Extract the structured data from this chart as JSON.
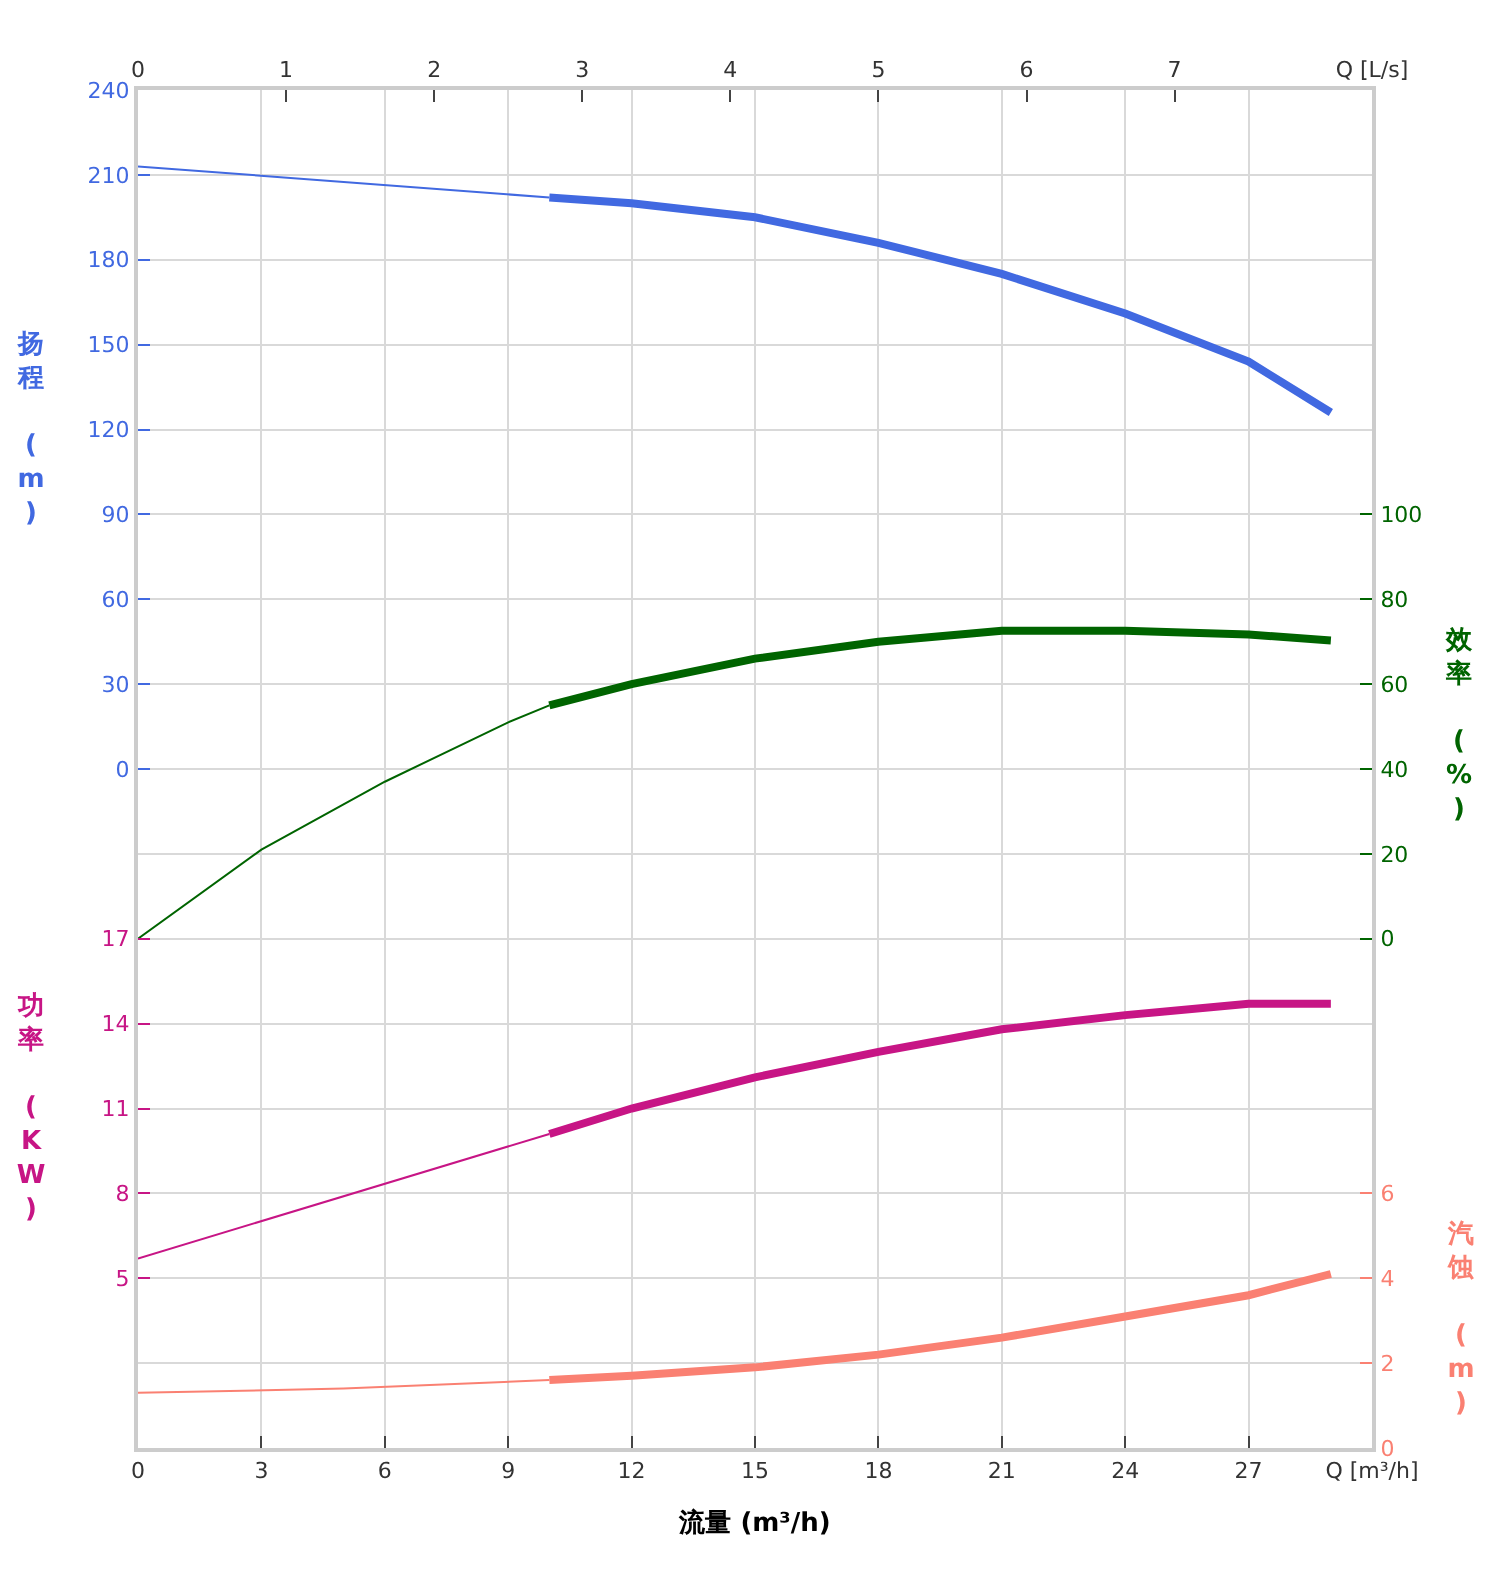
{
  "chart_data": [
    {
      "type": "line",
      "xlabel": "流量 (m³/h)",
      "ylabel": "扬程 (m)",
      "y2label": "效率 (%)",
      "xlim": [
        0,
        30
      ],
      "xticks": [
        0,
        3,
        6,
        9,
        12,
        15,
        18,
        21,
        24,
        27,
        {
          "value": 30,
          "label": "Q [m³/h]"
        }
      ],
      "x2lim": [
        0,
        8.333
      ],
      "x2ticks": [
        0,
        1,
        2,
        3,
        4,
        5,
        6,
        7,
        {
          "value": 8.333,
          "label": "Q [L/s]"
        }
      ],
      "ylim": [
        -240,
        240
      ],
      "yticks": [
        0,
        30,
        60,
        90,
        120,
        150,
        180,
        210,
        240
      ],
      "y2lim": [
        -120,
        200
      ],
      "y2ticks": [
        0,
        20,
        40,
        60,
        80,
        100
      ],
      "grid": true,
      "marker": "none",
      "line_style": "solid",
      "series": [
        {
          "color": "#4169e1",
          "x": [
            0,
            5,
            10
          ],
          "values": [
            213,
            207.5,
            202
          ]
        },
        {
          "color": "#4169e1",
          "x": [
            10,
            12,
            15,
            18,
            21,
            24,
            27,
            29
          ],
          "values": [
            202,
            200,
            195,
            186,
            175,
            161,
            144,
            126
          ]
        },
        {
          "color": "#006400",
          "axis": "y2",
          "x": [
            0,
            3,
            6,
            9,
            10
          ],
          "values": [
            0,
            21,
            37,
            51,
            55
          ]
        },
        {
          "color": "#006400",
          "axis": "y2",
          "x": [
            10,
            12,
            15,
            18,
            21,
            24,
            27,
            29
          ],
          "values": [
            55,
            60,
            66,
            70,
            72.6,
            72.6,
            71.7,
            70.3
          ]
        }
      ]
    },
    {
      "type": "line",
      "ylabel": "功率 (KW)",
      "y2label": "汽蚀 (m)",
      "tick_labels": "y",
      "xlim": [
        0,
        30
      ],
      "ylim": [
        -1,
        47
      ],
      "yticks": [
        5,
        8,
        11,
        14,
        17
      ],
      "y2lim": [
        0,
        32
      ],
      "y2ticks": [
        0,
        2,
        4,
        6
      ],
      "grid": true,
      "marker": "none",
      "line_style": "solid",
      "series": [
        {
          "color": "#c71585",
          "x": [
            0,
            10
          ],
          "values": [
            5.7,
            10.1
          ]
        },
        {
          "color": "#c71585",
          "x": [
            10,
            12,
            15,
            18,
            21,
            24,
            27,
            29
          ],
          "values": [
            10.1,
            11.0,
            12.1,
            13.0,
            13.8,
            14.3,
            14.7,
            14.7
          ]
        },
        {
          "color": "#fa8072",
          "axis": "y2",
          "x": [
            0,
            5,
            10
          ],
          "values": [
            1.3,
            1.4,
            1.6
          ]
        },
        {
          "color": "#fa8072",
          "axis": "y2",
          "x": [
            10,
            12,
            15,
            18,
            21,
            24,
            27,
            29
          ],
          "values": [
            1.6,
            1.7,
            1.9,
            2.2,
            2.6,
            3.1,
            3.6,
            4.1
          ]
        }
      ]
    }
  ]
}
